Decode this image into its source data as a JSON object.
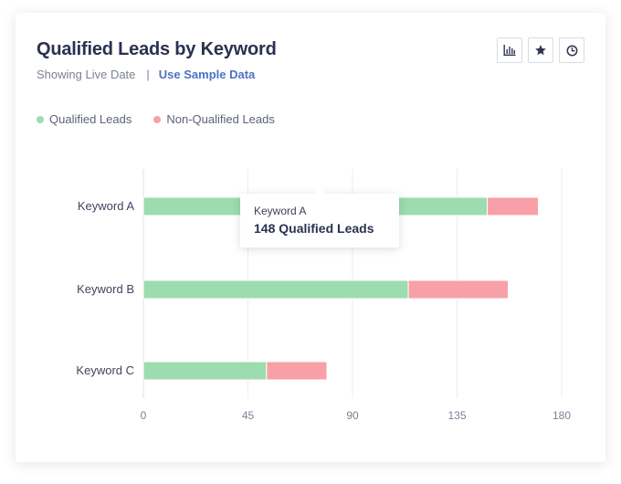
{
  "header": {
    "title": "Qualified Leads by Keyword",
    "status_text": "Showing Live Date",
    "separator": "|",
    "sample_link": "Use Sample Data"
  },
  "toolbar": {
    "buttons": [
      {
        "icon": "bar-chart-icon"
      },
      {
        "icon": "star-icon"
      },
      {
        "icon": "clock-icon"
      }
    ]
  },
  "colors": {
    "qualified": "#9ddcae",
    "non_qualified": "#f8a0a7",
    "grid": "#ebedf2",
    "axis_text": "#7b8196",
    "category_text": "#3f4560"
  },
  "tooltip": {
    "label": "Keyword A",
    "value": "148 Qualified Leads"
  },
  "chart_data": {
    "type": "bar",
    "orientation": "horizontal",
    "stacked": true,
    "title": "Qualified Leads by Keyword",
    "categories": [
      "Keyword A",
      "Keyword B",
      "Keyword C"
    ],
    "series": [
      {
        "name": "Qualified Leads",
        "values": [
          148,
          114,
          53
        ]
      },
      {
        "name": "Non-Qualified Leads",
        "values": [
          22,
          43,
          26
        ]
      }
    ],
    "xlim": [
      0,
      180
    ],
    "xticks": [
      0,
      45,
      90,
      135,
      180
    ],
    "grid": true,
    "legend_position": "top-left"
  }
}
